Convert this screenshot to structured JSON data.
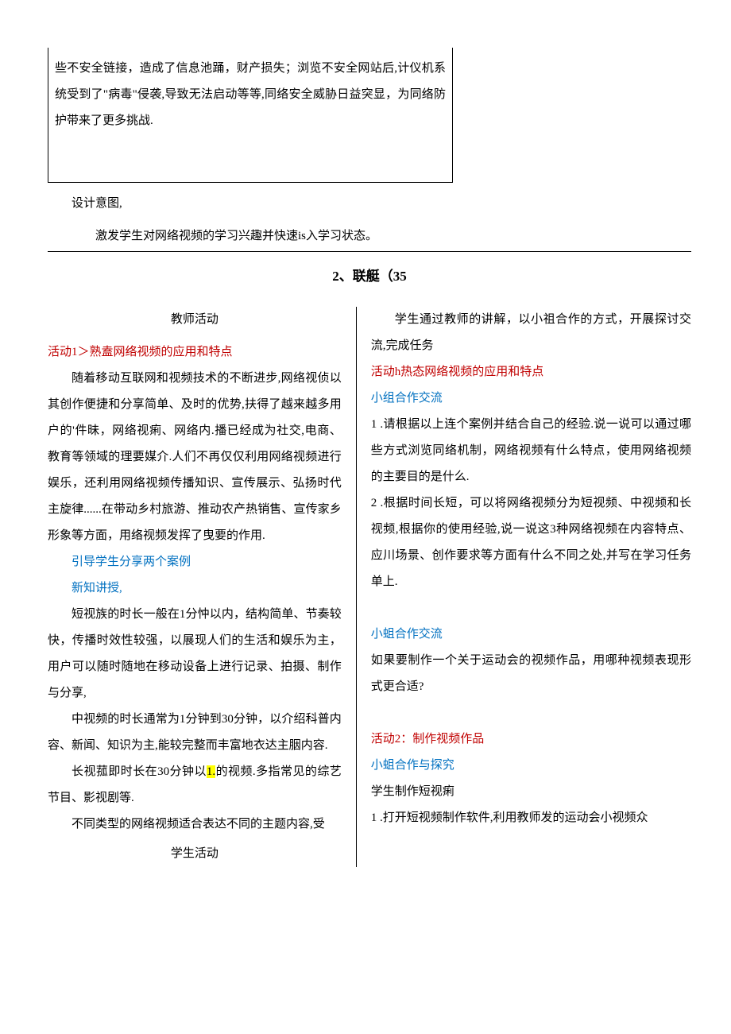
{
  "topBox": {
    "text": "些不安全链接，造成了信息池踊，财产损失；浏览不安全网站后,计仪机系统受到了\"病毒\"侵袭,导致无法启动等等,同络安全威胁日益突显，为同络防护带来了更多挑战."
  },
  "designIntent": {
    "label": "设计意图,",
    "content": "激发学生对网络视频的学习兴趣并快速is入学习状态。"
  },
  "sectionTitle": "2、联艇（35",
  "left": {
    "teacherLabel": "教师活动",
    "activity1": "活动1＞熟盍网络视频的应用和特点",
    "p1": "随着移动互联网和视频技术的不断进步,网络视侦以其创作便捷和分享简单、及时的优势,扶得了越来越多用户的'件昧，网络视痢、网络内.播已经成为社交,电商、教育等领域的理要媒介.人们不再仅仅利用网络视频进行娱乐，还利用网络视频传播知识、宣传展示、弘扬时代主旋律......在带动乡村旅游、推动农产热销售、宣传家乡形象等方面，用络视频发挥了曳要的作用.",
    "guide": "引导学生分享两个案例",
    "teach": "新知讲授,",
    "p2": "短视族的时长一般在1分忡以内，结构简单、节奏较快，传播时效性较强，以展现人们的生活和娱乐为主，用户可以随时随地在移动设备上进行记录、拍摄、制作与分享,",
    "p3": "中视频的时长通常为1分钟到30分钟，以介绍科普内容、新闻、知识为主,能较完整而丰富地衣达主胭内容.",
    "p4a": "长视菰即时长在30分钟以",
    "p4highlight": "1.",
    "p4b": "的视频.多指常见的综艺节目、影视剧等.",
    "p5": "不同类型的网络视频适合表达不同的主题内容,受",
    "studentLabel": "学生活动"
  },
  "right": {
    "intro": "学生通过教师的讲解，以小祖合作的方式，开展探讨交流,完成任务",
    "activity1": "活动h热态网络视频的应用和特点",
    "group1": "小组合作交流",
    "q1": "1 .请根据以上连个案例并结合自己的经验.说一说可以通过哪些方式浏览同络机制，网络视频有什么特点，使用网络视频的主要目的是什么.",
    "q2": "2 .根据时间长短，可以将网络视频分为短视频、中视频和长视频,根据你的使用经验,说一说这3种网络视频在内容特点、应川场景、创作要求等方面有什么不同之处,并写在学习任务单上.",
    "group2": "小蛆合作交流",
    "q3": "如果要制作一个关于运动会的视频作品，用哪种视频表现形式更合适?",
    "activity2": "活动2：制作视频作品",
    "group3": "小蛆合作与探究",
    "task": "学生制作短视痢",
    "q4": "1 .打开短视频制作软件,利用教师发的运动会小视频众"
  }
}
